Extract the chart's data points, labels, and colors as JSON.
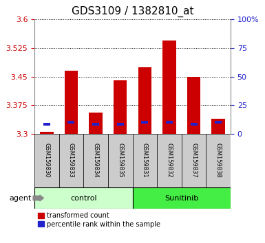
{
  "title": "GDS3109 / 1382810_at",
  "samples": [
    "GSM159830",
    "GSM159833",
    "GSM159834",
    "GSM159835",
    "GSM159831",
    "GSM159832",
    "GSM159837",
    "GSM159838"
  ],
  "red_values": [
    3.305,
    3.465,
    3.355,
    3.44,
    3.475,
    3.545,
    3.45,
    3.34
  ],
  "blue_values": [
    3.325,
    3.33,
    3.325,
    3.325,
    3.33,
    3.33,
    3.325,
    3.33
  ],
  "baseline": 3.3,
  "ylim_left": [
    3.3,
    3.6
  ],
  "yticks_left": [
    3.3,
    3.375,
    3.45,
    3.525,
    3.6
  ],
  "yticks_right": [
    0,
    25,
    50,
    75,
    100
  ],
  "ylim_right": [
    0,
    100
  ],
  "bar_color_red": "#cc0000",
  "bar_color_blue": "#2222cc",
  "bar_width": 0.55,
  "blue_bar_width": 0.28,
  "blue_bar_height": 0.007,
  "control_color": "#ccffcc",
  "sunitinib_color": "#44ee44",
  "xticklabel_color": "#cccccc",
  "legend_items": [
    "transformed count",
    "percentile rank within the sample"
  ],
  "title_fontsize": 11,
  "tick_fontsize": 8,
  "group_fontsize": 8,
  "xticklabel_fontsize": 6
}
